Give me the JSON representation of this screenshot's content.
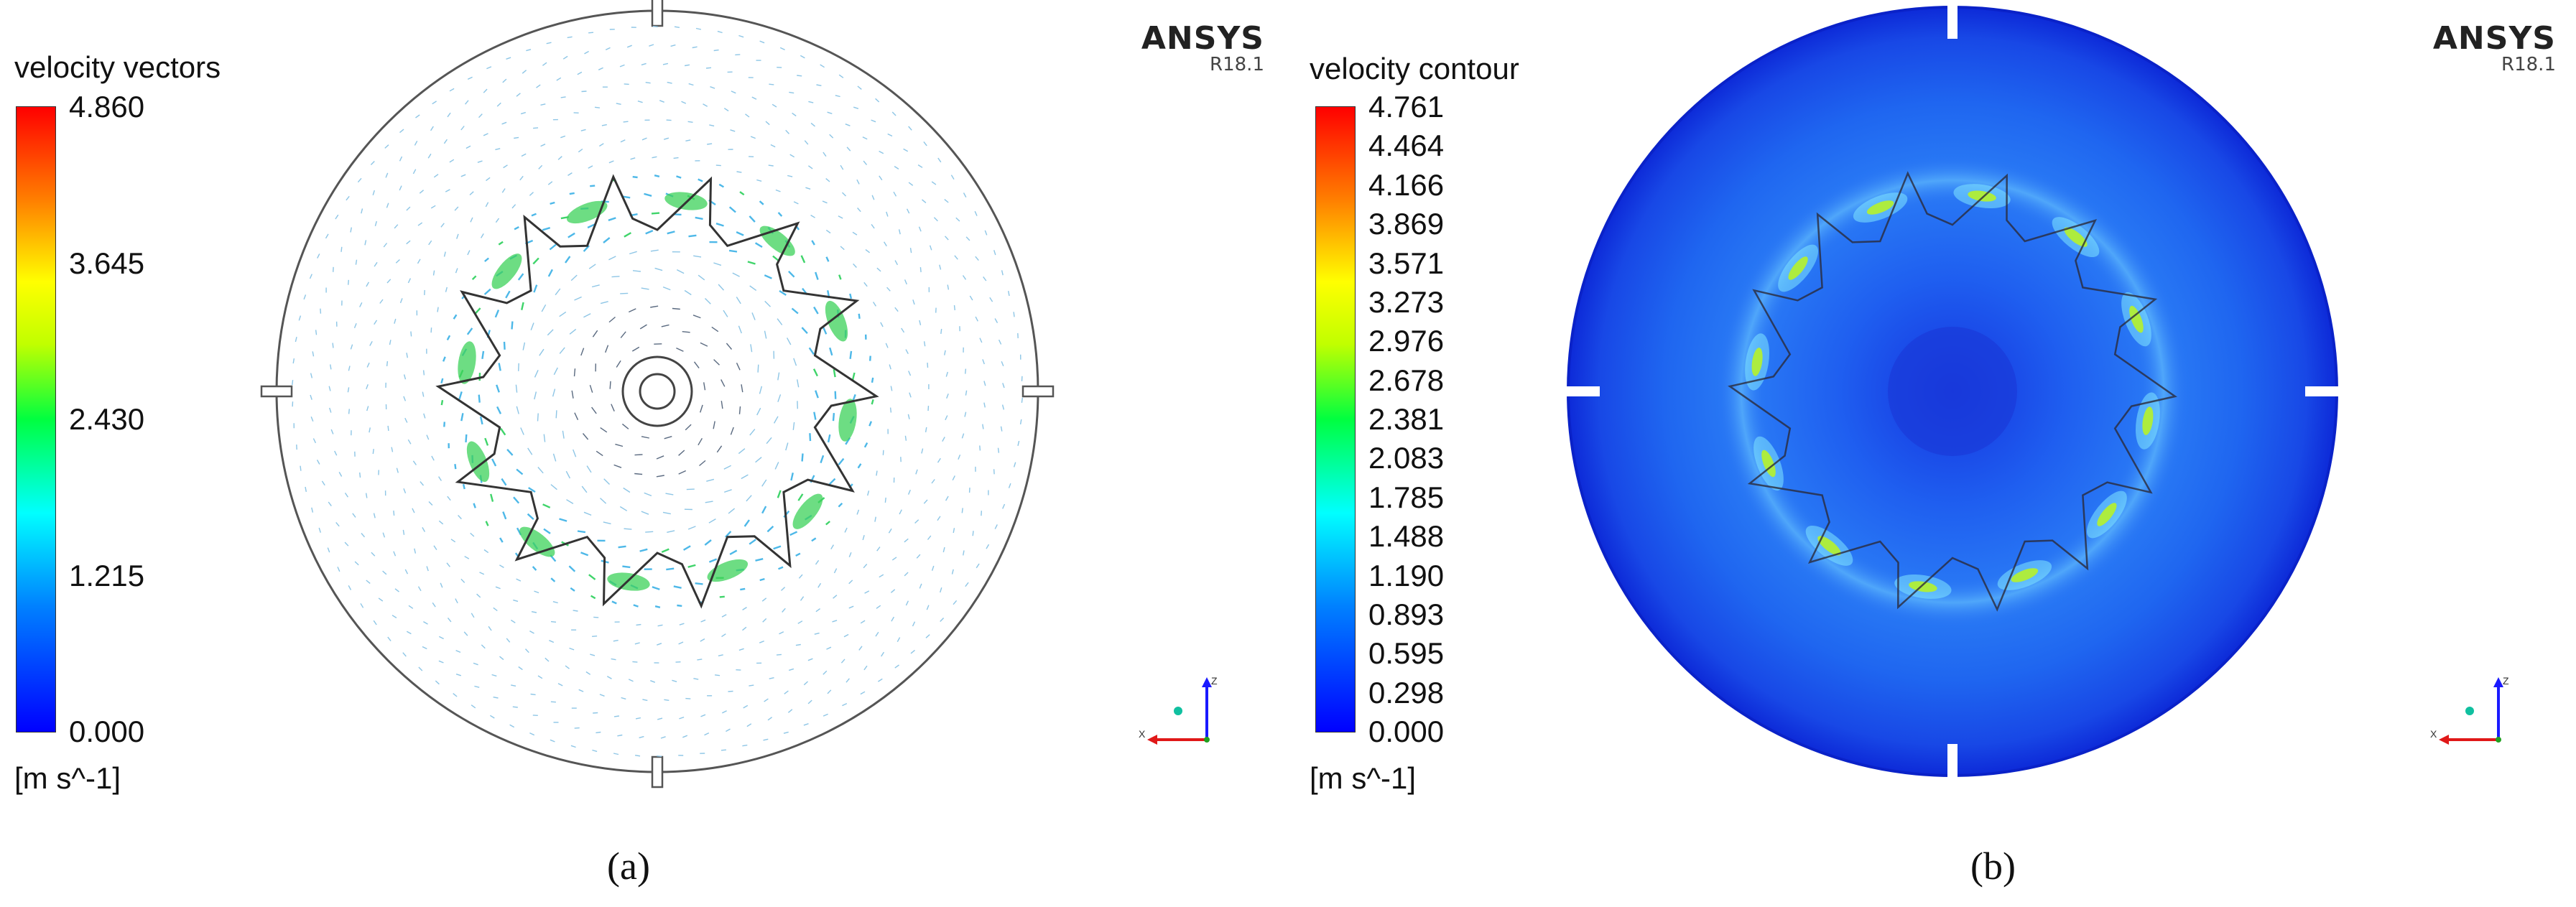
{
  "panels": [
    {
      "id": "a",
      "legend": {
        "title": "velocity vectors",
        "unit": "[m s^-1]",
        "ticks": [
          "4.860",
          "3.645",
          "2.430",
          "1.215",
          "0.000"
        ]
      },
      "brand": "ANSYS",
      "version": "R18.1",
      "caption": "(a)"
    },
    {
      "id": "b",
      "legend": {
        "title": "velocity contour",
        "unit": "[m s^-1]",
        "ticks": [
          "4.761",
          "4.464",
          "4.166",
          "3.869",
          "3.571",
          "3.273",
          "2.976",
          "2.678",
          "2.381",
          "2.083",
          "1.785",
          "1.488",
          "1.190",
          "0.893",
          "0.595",
          "0.298",
          "0.000"
        ]
      },
      "brand": "ANSYS",
      "version": "R18.1",
      "caption": "(b)"
    }
  ],
  "axis_triad": {
    "x": "X",
    "z": "Z"
  },
  "colors": {
    "low": "#0000ff",
    "field": "#1e5ef5",
    "high": "#ff0000",
    "outline": "#333333"
  }
}
